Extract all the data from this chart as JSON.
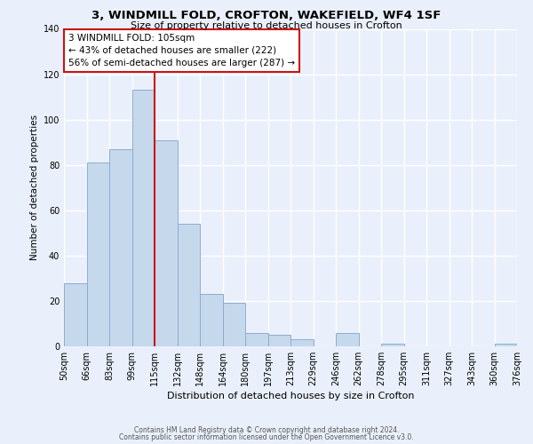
{
  "title": "3, WINDMILL FOLD, CROFTON, WAKEFIELD, WF4 1SF",
  "subtitle": "Size of property relative to detached houses in Crofton",
  "xlabel": "Distribution of detached houses by size in Crofton",
  "ylabel": "Number of detached properties",
  "bar_values": [
    28,
    81,
    87,
    113,
    91,
    54,
    23,
    19,
    6,
    5,
    3,
    0,
    6,
    0,
    1,
    0,
    0,
    0,
    0,
    1
  ],
  "tick_labels": [
    "50sqm",
    "66sqm",
    "83sqm",
    "99sqm",
    "115sqm",
    "132sqm",
    "148sqm",
    "164sqm",
    "180sqm",
    "197sqm",
    "213sqm",
    "229sqm",
    "246sqm",
    "262sqm",
    "278sqm",
    "295sqm",
    "311sqm",
    "327sqm",
    "343sqm",
    "360sqm",
    "376sqm"
  ],
  "bar_color": "#c6d8ec",
  "bar_edge_color": "#8aaed0",
  "ylim": [
    0,
    140
  ],
  "yticks": [
    0,
    20,
    40,
    60,
    80,
    100,
    120,
    140
  ],
  "red_line_x": 4.0,
  "annotation_title": "3 WINDMILL FOLD: 105sqm",
  "annotation_line1": "← 43% of detached houses are smaller (222)",
  "annotation_line2": "56% of semi-detached houses are larger (287) →",
  "footer1": "Contains HM Land Registry data © Crown copyright and database right 2024.",
  "footer2": "Contains public sector information licensed under the Open Government Licence v3.0.",
  "bg_color": "#eaf0fb"
}
